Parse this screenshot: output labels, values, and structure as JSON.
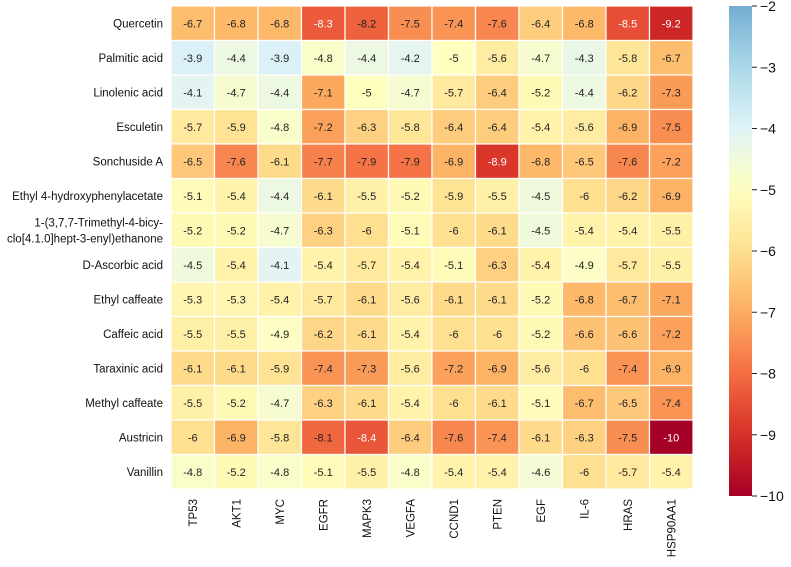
{
  "chart_data": {
    "type": "heatmap",
    "title": "",
    "xlabel": "",
    "ylabel": "",
    "columns": [
      "TP53",
      "AKT1",
      "MYC",
      "EGFR",
      "MAPK3",
      "VEGFA",
      "CCND1",
      "PTEN",
      "EGF",
      "IL-6",
      "HRAS",
      "HSP90AA1"
    ],
    "rows": [
      {
        "label": "Quercetin",
        "values": [
          -6.7,
          -6.8,
          -6.8,
          -8.3,
          -8.2,
          -7.5,
          -7.4,
          -7.6,
          -6.4,
          -6.8,
          -8.5,
          -9.2
        ]
      },
      {
        "label": "Palmitic acid",
        "values": [
          -3.9,
          -4.4,
          -3.9,
          -4.8,
          -4.4,
          -4.2,
          -5,
          -5.6,
          -4.7,
          -4.3,
          -5.8,
          -6.7
        ]
      },
      {
        "label": "Linolenic acid",
        "values": [
          -4.1,
          -4.7,
          -4.4,
          -7.1,
          -5,
          -4.7,
          -5.7,
          -6.4,
          -5.2,
          -4.4,
          -6.2,
          -7.3
        ]
      },
      {
        "label": "Esculetin",
        "values": [
          -5.7,
          -5.9,
          -4.8,
          -7.2,
          -6.3,
          -5.8,
          -6.4,
          -6.4,
          -5.4,
          -5.6,
          -6.9,
          -7.5
        ]
      },
      {
        "label": "Sonchuside A",
        "values": [
          -6.5,
          -7.6,
          -6.1,
          -7.7,
          -7.9,
          -7.9,
          -6.9,
          -8.9,
          -6.8,
          -6.5,
          -7.6,
          -7.2
        ]
      },
      {
        "label": "Ethyl 4-hydroxyphenylacetate",
        "values": [
          -5.1,
          -5.4,
          -4.4,
          -6.1,
          -5.5,
          -5.2,
          -5.9,
          -5.5,
          -4.5,
          -6,
          -6.2,
          -6.9
        ]
      },
      {
        "label": "1-(3,7,7-Trimethyl-4-bicy-\nclo[4.1.0]hept-3-enyl)ethanone",
        "values": [
          -5.2,
          -5.2,
          -4.7,
          -6.3,
          -6,
          -5.1,
          -6,
          -6.1,
          -4.5,
          -5.4,
          -5.4,
          -5.5
        ]
      },
      {
        "label": "D-Ascorbic acid",
        "values": [
          -4.5,
          -5.4,
          -4.1,
          -5.4,
          -5.7,
          -5.4,
          -5.1,
          -6.3,
          -5.4,
          -4.9,
          -5.7,
          -5.5
        ]
      },
      {
        "label": "Ethyl caffeate",
        "values": [
          -5.3,
          -5.3,
          -5.4,
          -5.7,
          -6.1,
          -5.6,
          -6.1,
          -6.1,
          -5.2,
          -6.8,
          -6.7,
          -7.1
        ]
      },
      {
        "label": "Caffeic acid",
        "values": [
          -5.5,
          -5.5,
          -4.9,
          -6.2,
          -6.1,
          -5.4,
          -6,
          -6,
          -5.2,
          -6.6,
          -6.6,
          -7.2
        ]
      },
      {
        "label": "Taraxinic acid",
        "values": [
          -6.1,
          -6.1,
          -5.9,
          -7.4,
          -7.3,
          -5.6,
          -7.2,
          -6.9,
          -5.6,
          -6,
          -7.4,
          -6.9
        ]
      },
      {
        "label": "Methyl caffeate",
        "values": [
          -5.5,
          -5.2,
          -4.7,
          -6.3,
          -6.1,
          -5.4,
          -6,
          -6.1,
          -5.1,
          -6.7,
          -6.5,
          -7.4
        ]
      },
      {
        "label": "Austricin",
        "values": [
          -6,
          -6.9,
          -5.8,
          -8.1,
          -8.4,
          -6.4,
          -7.6,
          -7.4,
          -6.1,
          -6.3,
          -7.5,
          -10
        ]
      },
      {
        "label": "Vanillin",
        "values": [
          -4.8,
          -5.2,
          -4.8,
          -5.1,
          -5.5,
          -4.8,
          -5.4,
          -5.4,
          -4.6,
          -6,
          -5.7,
          -5.4
        ]
      }
    ],
    "colorbar": {
      "min": -10,
      "max": -2,
      "ticks": [
        "-2",
        "-3",
        "-4",
        "-5",
        "-6",
        "-7",
        "-8",
        "-9",
        "-10"
      ],
      "colormap": "RdYlBu"
    },
    "colors": {
      "cell_border": "#ffffff",
      "text_dark": "#222222",
      "text_light": "#ffffff"
    }
  }
}
